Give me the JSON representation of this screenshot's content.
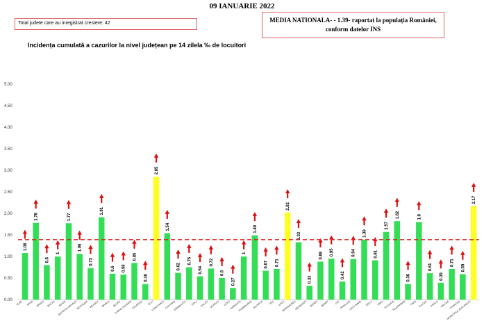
{
  "header": {
    "date": "09 IANUARIE 2022",
    "growth_box": "Total judete care au inregistrat crestere: 42",
    "national_line1": "MEDIA NATIONALA-  - 1.39-  raportat la populația României,",
    "national_line2": "conform datelor INS"
  },
  "colors": {
    "normal": "#33dd55",
    "highlight": "#ffff22",
    "arrow": "#dd1111",
    "reference": "#dd2222"
  },
  "chart_data": {
    "type": "bar",
    "title": "Incidența cumulată a cazurilor la nivel județean pe 14 zilela ‰ de locuitori",
    "ylim": [
      0,
      5.0
    ],
    "yticks": [
      "0.00",
      "0.50",
      "1.00",
      "1.50",
      "2.00",
      "2.50",
      "3.00",
      "3.50",
      "4.00",
      "4.50",
      "5.00"
    ],
    "reference_line": 1.39,
    "grid": false,
    "categories": [
      "ALBA",
      "ARAD",
      "ARGEȘ",
      "BACĂU",
      "BIHOR",
      "BISTRIȚA-NĂSĂUD",
      "BOTOȘANI",
      "BRAȘOV",
      "BRĂILA",
      "BUZĂU",
      "CARAȘ-SEVERIN",
      "CĂLĂRAȘI",
      "CLUJ",
      "CONSTANȚA",
      "COVASNA",
      "DÂMBOVIȚA",
      "DOLJ",
      "GALAȚI",
      "GIURGIU",
      "GORJ",
      "HARGHITA",
      "HUNEDOARA",
      "IALOMIȚA",
      "IAȘI",
      "ILFOV",
      "MARAMUREȘ",
      "MEHEDINȚI",
      "MUREȘ",
      "NEAMȚ",
      "OLT",
      "PRAHOVA",
      "SATU MARE",
      "SĂLAJ",
      "SIBIU",
      "SUCEAVA",
      "TELEORMAN",
      "TIMIȘ",
      "TULCEA",
      "VASLUI",
      "VÂLCEA",
      "VRANCEA",
      "MUNICIPIUL BUCUREȘTI"
    ],
    "values": [
      1.08,
      1.78,
      0.8,
      1,
      1.77,
      1.06,
      0.73,
      1.91,
      0.6,
      0.58,
      0.85,
      0.36,
      2.85,
      1.54,
      0.62,
      0.75,
      0.54,
      0.72,
      0.5,
      0.27,
      1,
      1.49,
      0.67,
      0.71,
      2.02,
      1.33,
      0.32,
      0.88,
      0.95,
      0.42,
      0.94,
      1.39,
      0.91,
      1.57,
      1.82,
      0.36,
      1.8,
      0.61,
      0.39,
      0.71,
      0.59,
      2.17
    ],
    "value_labels": [
      "1.08",
      "1.78",
      "0.8",
      "1",
      "1.77",
      "1.06",
      "0.73",
      "1.91",
      "0.6",
      "0.58",
      "0.85",
      "0.36",
      "2.85",
      "1.54",
      "0.62",
      "0.75",
      "0.54",
      "0.72",
      "0.5",
      "0.27",
      "1",
      "1.49",
      "0.67",
      "0.71",
      "2.02",
      "1.33",
      "0.32",
      "0.88",
      "0.95",
      "0.42",
      "0.94",
      "1.39",
      "0.91",
      "1.57",
      "1.82",
      "0.36",
      "1.8",
      "0.61",
      "0.39",
      "0.71",
      "0.59",
      "2.17"
    ],
    "highlighted": [
      "CLUJ",
      "ILFOV",
      "MUNICIPIUL BUCUREȘTI"
    ],
    "increase_arrows": true
  }
}
